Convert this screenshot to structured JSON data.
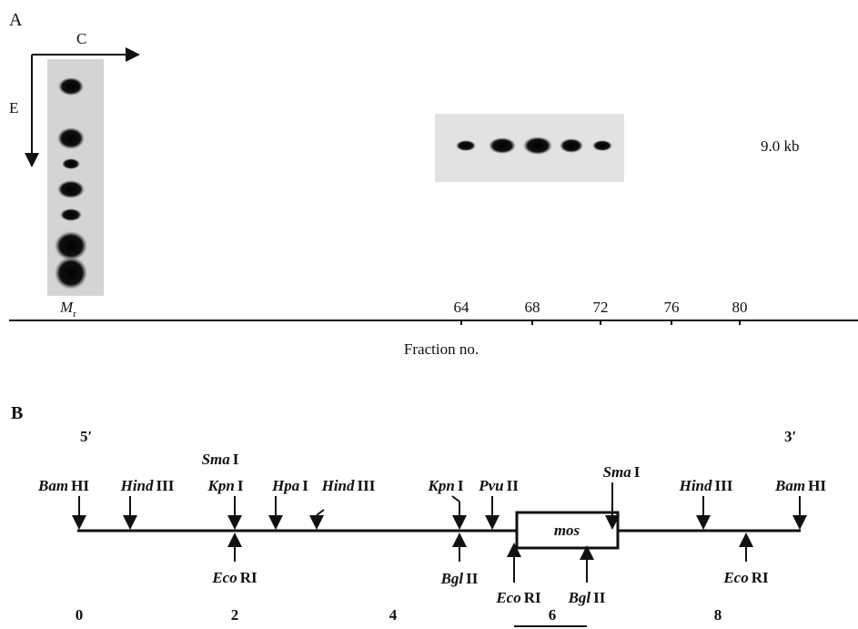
{
  "panel_a": {
    "label": "A",
    "axis_c": "C",
    "axis_e": "E",
    "band_label": "9.0 kb",
    "marker_label": {
      "base": "M",
      "sub": "r"
    },
    "fraction_ticks": [
      64,
      68,
      72,
      76,
      80
    ],
    "x_axis_label": "Fraction no."
  },
  "panel_b": {
    "label": "B",
    "end_5": "5′",
    "end_3": "3′",
    "gene": "mos",
    "sites_above": [
      {
        "italic": "Bam",
        "roman": "HI"
      },
      {
        "italic": "Hind",
        "roman": "III"
      },
      {
        "italic": "Sma",
        "roman": "I"
      },
      {
        "italic": "Kpn",
        "roman": "I"
      },
      {
        "italic": "Hpa",
        "roman": "I"
      },
      {
        "italic": "Hind",
        "roman": "III"
      },
      {
        "italic": "Kpn",
        "roman": "I"
      },
      {
        "italic": "Pvu",
        "roman": "II"
      },
      {
        "italic": "Sma",
        "roman": "I"
      },
      {
        "italic": "Hind",
        "roman": "III"
      },
      {
        "italic": "Bam",
        "roman": "HI"
      }
    ],
    "sites_below": [
      {
        "italic": "Eco",
        "roman": "RI"
      },
      {
        "italic": "Bgl",
        "roman": "II"
      },
      {
        "italic": "Eco",
        "roman": "RI"
      },
      {
        "italic": "Bgl",
        "roman": "II"
      },
      {
        "italic": "Eco",
        "roman": "RI"
      }
    ],
    "scale_ticks": [
      0,
      2,
      4,
      6,
      8
    ]
  }
}
